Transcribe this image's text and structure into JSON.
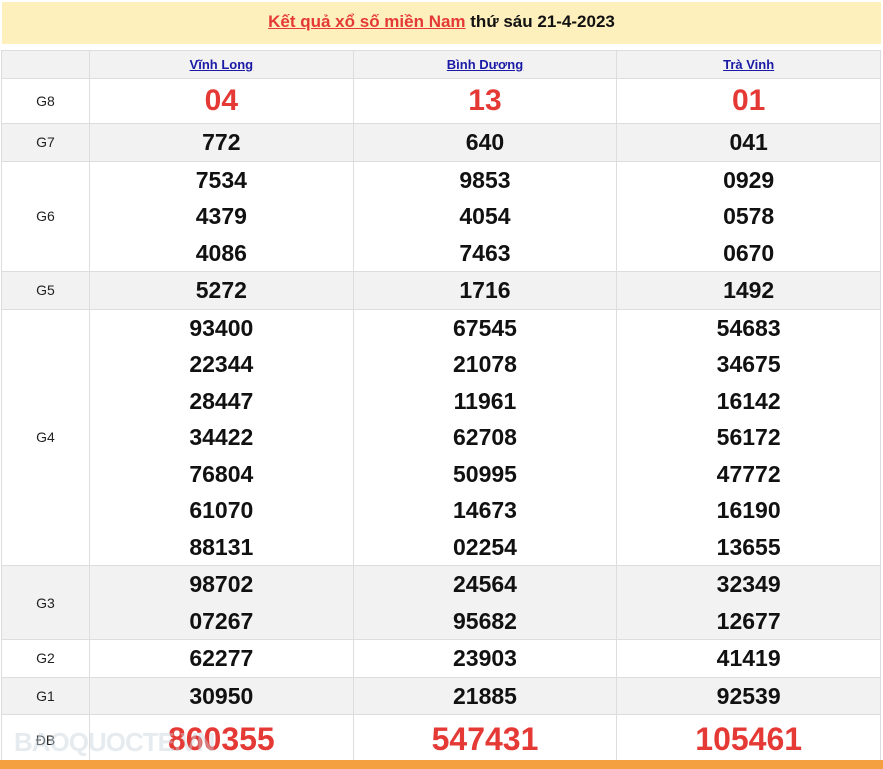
{
  "header": {
    "link": "Kết quả xổ số miền Nam",
    "suffix": " thứ sáu 21-4-2023"
  },
  "provinces": [
    "Vĩnh Long",
    "Bình Dương",
    "Trà Vinh"
  ],
  "prizes": [
    {
      "label": "G8",
      "values": [
        [
          "04"
        ],
        [
          "13"
        ],
        [
          "01"
        ]
      ]
    },
    {
      "label": "G7",
      "values": [
        [
          "772"
        ],
        [
          "640"
        ],
        [
          "041"
        ]
      ]
    },
    {
      "label": "G6",
      "values": [
        [
          "7534",
          "4379",
          "4086"
        ],
        [
          "9853",
          "4054",
          "7463"
        ],
        [
          "0929",
          "0578",
          "0670"
        ]
      ]
    },
    {
      "label": "G5",
      "values": [
        [
          "5272"
        ],
        [
          "1716"
        ],
        [
          "1492"
        ]
      ]
    },
    {
      "label": "G4",
      "values": [
        [
          "93400",
          "22344",
          "28447",
          "34422",
          "76804",
          "61070",
          "88131"
        ],
        [
          "67545",
          "21078",
          "11961",
          "62708",
          "50995",
          "14673",
          "02254"
        ],
        [
          "54683",
          "34675",
          "16142",
          "56172",
          "47772",
          "16190",
          "13655"
        ]
      ]
    },
    {
      "label": "G3",
      "values": [
        [
          "98702",
          "07267"
        ],
        [
          "24564",
          "95682"
        ],
        [
          "32349",
          "12677"
        ]
      ]
    },
    {
      "label": "G2",
      "values": [
        [
          "62277"
        ],
        [
          "23903"
        ],
        [
          "41419"
        ]
      ]
    },
    {
      "label": "G1",
      "values": [
        [
          "30950"
        ],
        [
          "21885"
        ],
        [
          "92539"
        ]
      ]
    },
    {
      "label": "ĐB",
      "values": [
        [
          "860355"
        ],
        [
          "547431"
        ],
        [
          "105461"
        ]
      ]
    }
  ],
  "watermark": "BAOQUOCTE.VN",
  "colors": {
    "accent": "#e53935",
    "header_bg": "#fdf0bd",
    "footer_bar": "#f5a040"
  }
}
